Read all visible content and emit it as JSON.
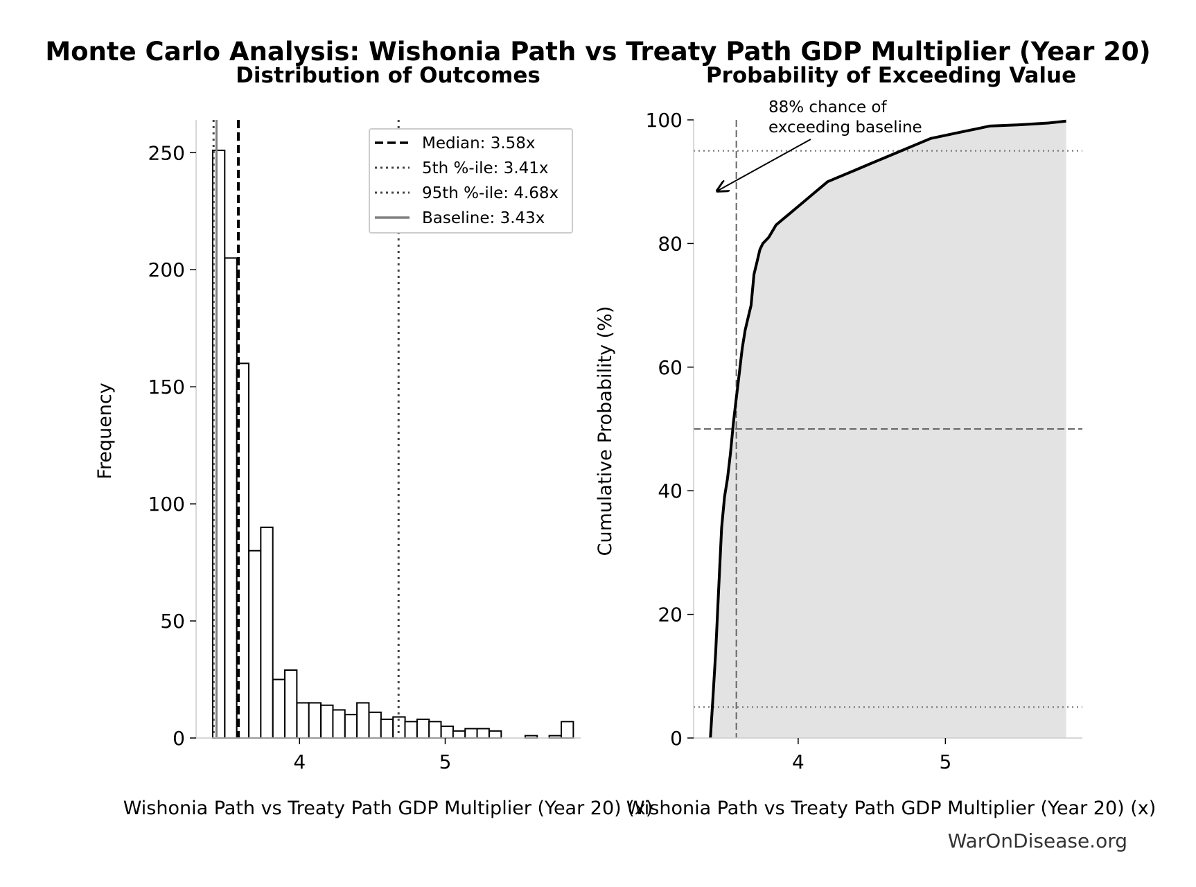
{
  "figure": {
    "title": "Monte Carlo Analysis: Wishonia Path vs Treaty Path GDP Multiplier (Year 20)",
    "watermark": "WarOnDisease.org"
  },
  "chart_data": [
    {
      "type": "bar",
      "title": "Distribution of Outcomes",
      "xlabel": "Wishonia Path vs Treaty Path GDP Multiplier (Year 20) (x)",
      "ylabel": "Frequency",
      "xlim": [
        3.29,
        5.93
      ],
      "ylim": [
        0,
        264
      ],
      "xticks": [
        4,
        5
      ],
      "yticks": [
        0,
        50,
        100,
        150,
        200,
        250
      ],
      "bin_width": 0.0825,
      "bins": [
        {
          "x0": 3.404,
          "count": 251
        },
        {
          "x0": 3.487,
          "count": 205
        },
        {
          "x0": 3.569,
          "count": 160
        },
        {
          "x0": 3.652,
          "count": 80
        },
        {
          "x0": 3.734,
          "count": 90
        },
        {
          "x0": 3.817,
          "count": 25
        },
        {
          "x0": 3.899,
          "count": 29
        },
        {
          "x0": 3.982,
          "count": 15
        },
        {
          "x0": 4.064,
          "count": 15
        },
        {
          "x0": 4.147,
          "count": 14
        },
        {
          "x0": 4.229,
          "count": 12
        },
        {
          "x0": 4.312,
          "count": 10
        },
        {
          "x0": 4.394,
          "count": 15
        },
        {
          "x0": 4.477,
          "count": 11
        },
        {
          "x0": 4.559,
          "count": 8
        },
        {
          "x0": 4.642,
          "count": 9
        },
        {
          "x0": 4.724,
          "count": 7
        },
        {
          "x0": 4.807,
          "count": 8
        },
        {
          "x0": 4.889,
          "count": 7
        },
        {
          "x0": 4.972,
          "count": 5
        },
        {
          "x0": 5.054,
          "count": 3
        },
        {
          "x0": 5.137,
          "count": 4
        },
        {
          "x0": 5.219,
          "count": 4
        },
        {
          "x0": 5.302,
          "count": 3
        },
        {
          "x0": 5.384,
          "count": 0
        },
        {
          "x0": 5.467,
          "count": 0
        },
        {
          "x0": 5.549,
          "count": 1
        },
        {
          "x0": 5.632,
          "count": 0
        },
        {
          "x0": 5.714,
          "count": 1
        },
        {
          "x0": 5.797,
          "count": 7
        }
      ],
      "reference_lines": [
        {
          "label": "Median: 3.58x",
          "value": 3.58,
          "style": "dashed",
          "color": "#000000"
        },
        {
          "label": "5th %-ile: 3.41x",
          "value": 3.41,
          "style": "dotted",
          "color": "#444444"
        },
        {
          "label": "95th %-ile: 4.68x",
          "value": 4.68,
          "style": "dotted",
          "color": "#444444"
        },
        {
          "label": "Baseline: 3.43x",
          "value": 3.43,
          "style": "solid",
          "color": "#808080"
        }
      ],
      "legend_position": "top-right",
      "grid": false
    },
    {
      "type": "area",
      "title": "Probability of Exceeding Value",
      "xlabel": "Wishonia Path vs Treaty Path GDP Multiplier (Year 20) (x)",
      "ylabel": "Cumulative Probability (%)",
      "xlim": [
        3.29,
        5.93
      ],
      "ylim": [
        0,
        100
      ],
      "xticks": [
        4,
        5
      ],
      "yticks": [
        0,
        20,
        40,
        60,
        80,
        100
      ],
      "series": [
        {
          "x": [
            3.404,
            3.42,
            3.44,
            3.46,
            3.48,
            3.5,
            3.52,
            3.54,
            3.56,
            3.58,
            3.6,
            3.62,
            3.64,
            3.66,
            3.68,
            3.7,
            3.72,
            3.74,
            3.76,
            3.8,
            3.85,
            3.9,
            3.95,
            4.0,
            4.05,
            4.1,
            4.15,
            4.2,
            4.3,
            4.4,
            4.5,
            4.6,
            4.7,
            4.8,
            4.9,
            5.0,
            5.1,
            5.2,
            5.3,
            5.5,
            5.7,
            5.82
          ],
          "values": [
            0,
            6,
            14,
            24,
            34,
            39,
            42,
            46,
            51,
            55,
            59,
            63,
            66,
            68,
            70,
            75,
            77,
            79,
            80,
            81,
            83,
            84,
            85,
            86,
            87,
            88,
            89,
            90,
            91,
            92,
            93,
            94,
            95,
            96,
            97,
            97.5,
            98,
            98.5,
            99,
            99.2,
            99.5,
            99.8
          ]
        }
      ],
      "reference_lines": [
        {
          "orientation": "vertical",
          "value": 3.58,
          "style": "dashed"
        },
        {
          "orientation": "horizontal",
          "value": 50,
          "style": "dashed"
        },
        {
          "orientation": "horizontal",
          "value": 95,
          "style": "dotted"
        },
        {
          "orientation": "horizontal",
          "value": 5,
          "style": "dotted"
        }
      ],
      "annotation": {
        "text_lines": [
          "88% chance of",
          "exceeding baseline"
        ],
        "text_at": [
          3.8,
          98
        ],
        "arrow_to": [
          3.45,
          88.5
        ]
      },
      "grid": false
    }
  ]
}
